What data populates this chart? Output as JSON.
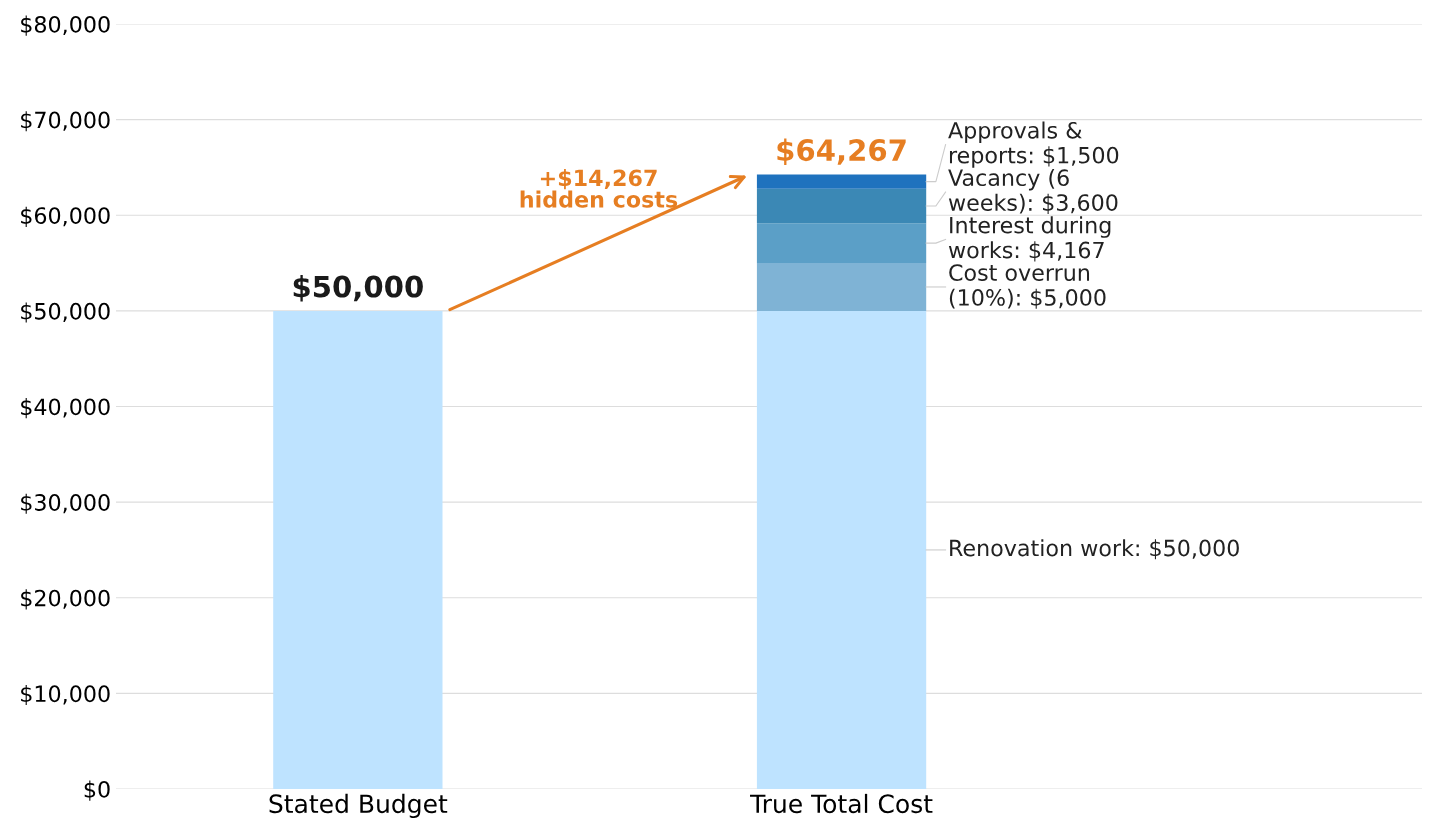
{
  "chart_data": {
    "type": "bar",
    "stacked": true,
    "categories": [
      "Stated Budget",
      "True Total Cost"
    ],
    "series": [
      {
        "name": "Renovation work: $50,000",
        "color": "#bee3ff",
        "values": [
          50000,
          50000
        ]
      },
      {
        "name": "Cost overrun (10%): $5,000",
        "color": "#7fb3d5",
        "values": [
          null,
          5000
        ]
      },
      {
        "name": "Interest during works: $4,167",
        "color": "#5b9fc7",
        "values": [
          null,
          4167
        ]
      },
      {
        "name": "Vacancy (6 weeks): $3,600",
        "color": "#3b88b5",
        "values": [
          null,
          3600
        ]
      },
      {
        "name": "Approvals & reports: $1,500",
        "color": "#1f72be",
        "values": [
          null,
          1500
        ]
      }
    ],
    "totals": [
      "$50,000",
      "$64,267"
    ],
    "annotations": [
      "+$14,267\nhidden costs"
    ],
    "ylim": [
      0,
      80000
    ],
    "yticks": [
      {
        "value": 0,
        "label": "$0"
      },
      {
        "value": 10000,
        "label": "$10,000"
      },
      {
        "value": 20000,
        "label": "$20,000"
      },
      {
        "value": 30000,
        "label": "$30,000"
      },
      {
        "value": 40000,
        "label": "$40,000"
      },
      {
        "value": 50000,
        "label": "$50,000"
      },
      {
        "value": 60000,
        "label": "$60,000"
      },
      {
        "value": 70000,
        "label": "$70,000"
      },
      {
        "value": 80000,
        "label": "$80,000"
      }
    ],
    "grid": "y",
    "legend": false
  }
}
